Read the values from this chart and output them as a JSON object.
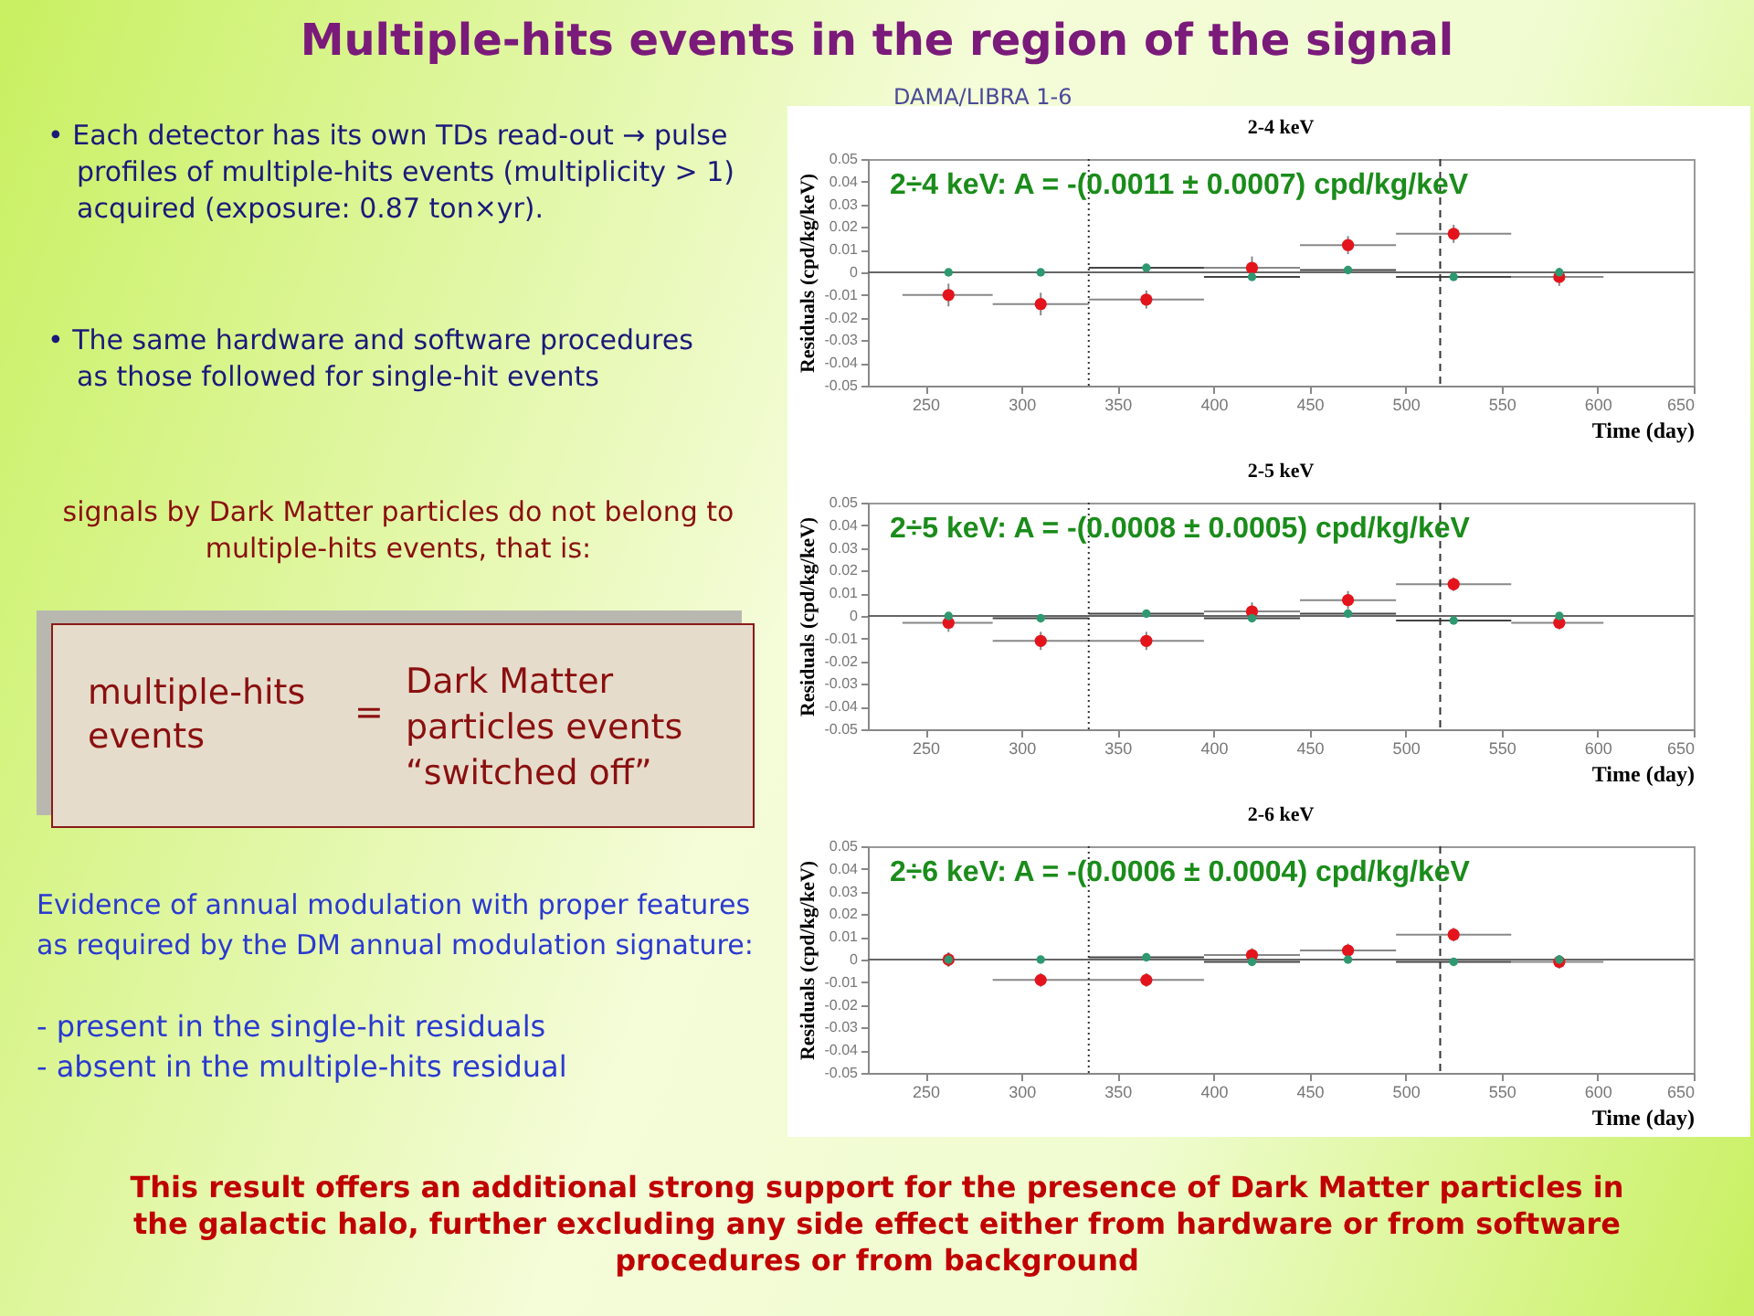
{
  "chart_data": [
    {
      "type": "other",
      "title": "Multiple-hits events in the region of the signal",
      "annotations": [
        "• Each detector has its own TDs read-out → pulse profiles of multiple-hits events (multiplicity > 1) acquired (exposure: 0.87 ton×yr).",
        "• The same hardware and software procedures as those followed for single-hit events",
        "signals by Dark Matter particles do not belong to multiple-hits events, that is:",
        "multiple-hits events",
        "=",
        "Dark Matter particles events “switched off”",
        "Evidence of annual modulation with proper features as required by the DM annual modulation signature:",
        "- present in the single-hit residuals",
        "- absent in the multiple-hits residual",
        "This result offers an additional strong support for the presence of Dark Matter particles in the galactic halo, further excluding any side effect either from hardware or from software procedures or from background"
      ]
    },
    {
      "type": "scatter",
      "title": "2-4 keV",
      "subtitle": "DAMA/LIBRA 1-6",
      "xlabel": "Time (day)",
      "ylabel": "Residuals (cpd/kg/keV)",
      "x": [
        262,
        310,
        365,
        420,
        470,
        525,
        580
      ],
      "xlim": [
        220,
        650
      ],
      "xticks": [
        250,
        300,
        350,
        400,
        450,
        500,
        550,
        600,
        650
      ],
      "ylim": [
        -0.05,
        0.05
      ],
      "yticks": [
        -0.05,
        -0.04,
        -0.03,
        -0.02,
        -0.01,
        0,
        0.01,
        0.02,
        0.03,
        0.04,
        0.05
      ],
      "marker": "circle",
      "grid": false,
      "ref_lines": [
        {
          "axis": "y",
          "value": 0
        },
        {
          "axis": "x",
          "value": 335,
          "line_style": "dotted"
        },
        {
          "axis": "x",
          "value": 518,
          "line_style": "dashed"
        }
      ],
      "annotations": [
        "2÷4 keV:    A = -(0.0011 ± 0.0007) cpd/kg/keV"
      ],
      "series": [
        {
          "color": "#e3141c",
          "values": [
            -0.01,
            -0.014,
            -0.012,
            0.002,
            0.012,
            0.017,
            -0.002
          ],
          "errors": [
            0.005,
            0.005,
            0.004,
            0.005,
            0.004,
            0.004,
            0.004
          ],
          "xerrors": [
            [
              238,
              285
            ],
            [
              285,
              335
            ],
            [
              335,
              395
            ],
            [
              395,
              445
            ],
            [
              445,
              495
            ],
            [
              495,
              555
            ],
            [
              555,
              603
            ]
          ]
        },
        {
          "color": "#2e9970",
          "values": [
            0,
            0,
            0.002,
            -0.002,
            0.001,
            -0.002,
            0
          ],
          "xerrors": [
            [
              238,
              285
            ],
            [
              285,
              335
            ],
            [
              335,
              395
            ],
            [
              395,
              445
            ],
            [
              445,
              495
            ],
            [
              495,
              555
            ],
            [
              555,
              603
            ]
          ]
        }
      ]
    },
    {
      "type": "scatter",
      "title": "2-5 keV",
      "xlabel": "Time (day)",
      "ylabel": "Residuals (cpd/kg/keV)",
      "x": [
        262,
        310,
        365,
        420,
        470,
        525,
        580
      ],
      "xlim": [
        220,
        650
      ],
      "xticks": [
        250,
        300,
        350,
        400,
        450,
        500,
        550,
        600,
        650
      ],
      "ylim": [
        -0.05,
        0.05
      ],
      "yticks": [
        -0.05,
        -0.04,
        -0.03,
        -0.02,
        -0.01,
        0,
        0.01,
        0.02,
        0.03,
        0.04,
        0.05
      ],
      "marker": "circle",
      "grid": false,
      "ref_lines": [
        {
          "axis": "y",
          "value": 0
        },
        {
          "axis": "x",
          "value": 335,
          "line_style": "dotted"
        },
        {
          "axis": "x",
          "value": 518,
          "line_style": "dashed"
        }
      ],
      "annotations": [
        "2÷5 keV:    A = -(0.0008 ± 0.0005) cpd/kg/keV"
      ],
      "series": [
        {
          "color": "#e3141c",
          "values": [
            -0.003,
            -0.011,
            -0.011,
            0.002,
            0.007,
            0.014,
            -0.003
          ],
          "errors": [
            0.004,
            0.004,
            0.004,
            0.004,
            0.004,
            0.003,
            0.003
          ],
          "xerrors": [
            [
              238,
              285
            ],
            [
              285,
              335
            ],
            [
              335,
              395
            ],
            [
              395,
              445
            ],
            [
              445,
              495
            ],
            [
              495,
              555
            ],
            [
              555,
              603
            ]
          ]
        },
        {
          "color": "#2e9970",
          "values": [
            0,
            -0.001,
            0.001,
            -0.001,
            0.001,
            -0.002,
            0
          ],
          "xerrors": [
            [
              238,
              285
            ],
            [
              285,
              335
            ],
            [
              335,
              395
            ],
            [
              395,
              445
            ],
            [
              445,
              495
            ],
            [
              495,
              555
            ],
            [
              555,
              603
            ]
          ]
        }
      ]
    },
    {
      "type": "scatter",
      "title": "2-6 keV",
      "xlabel": "Time (day)",
      "ylabel": "Residuals (cpd/kg/keV)",
      "x": [
        262,
        310,
        365,
        420,
        470,
        525,
        580
      ],
      "xlim": [
        220,
        650
      ],
      "xticks": [
        250,
        300,
        350,
        400,
        450,
        500,
        550,
        600,
        650
      ],
      "ylim": [
        -0.05,
        0.05
      ],
      "yticks": [
        -0.05,
        -0.04,
        -0.03,
        -0.02,
        -0.01,
        0,
        0.01,
        0.02,
        0.03,
        0.04,
        0.05
      ],
      "marker": "circle",
      "grid": false,
      "ref_lines": [
        {
          "axis": "y",
          "value": 0
        },
        {
          "axis": "x",
          "value": 335,
          "line_style": "dotted"
        },
        {
          "axis": "x",
          "value": 518,
          "line_style": "dashed"
        }
      ],
      "annotations": [
        "2÷6 keV:    A = -(0.0006 ± 0.0004) cpd/kg/keV"
      ],
      "series": [
        {
          "color": "#e3141c",
          "values": [
            0,
            -0.009,
            -0.009,
            0.002,
            0.004,
            0.011,
            -0.001
          ],
          "errors": [
            0.003,
            0.003,
            0.003,
            0.003,
            0.003,
            0.003,
            0.003
          ],
          "xerrors": [
            [
              238,
              285
            ],
            [
              285,
              335
            ],
            [
              335,
              395
            ],
            [
              395,
              445
            ],
            [
              445,
              495
            ],
            [
              495,
              555
            ],
            [
              555,
              603
            ]
          ]
        },
        {
          "color": "#2e9970",
          "values": [
            0,
            0,
            0.001,
            -0.001,
            0,
            -0.001,
            0
          ],
          "errors": [
            0.003,
            null,
            null,
            null,
            null,
            null,
            null
          ],
          "xerrors": [
            [
              238,
              285
            ],
            [
              285,
              335
            ],
            [
              335,
              395
            ],
            [
              395,
              445
            ],
            [
              445,
              495
            ],
            [
              495,
              555
            ],
            [
              555,
              603
            ]
          ]
        }
      ]
    }
  ]
}
